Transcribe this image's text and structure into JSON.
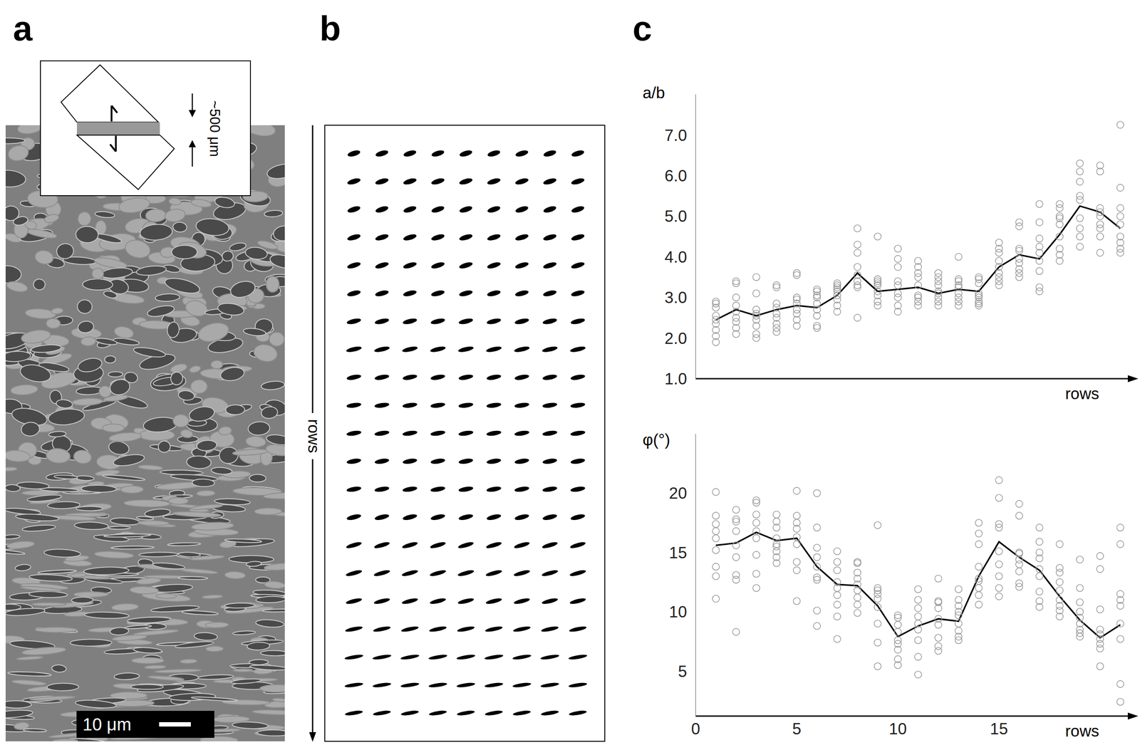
{
  "panel_labels": [
    "a",
    "b",
    "c"
  ],
  "panel_a": {
    "inset_label": "~500 μm",
    "scale_bar": "10 μm"
  },
  "panel_b": {
    "axis_label": "rows",
    "columns": 9
  },
  "chart_data": [
    {
      "type": "scatter",
      "y_label": "a/b",
      "x_label": "rows",
      "xlim": [
        0,
        21.5
      ],
      "ylim": [
        1,
        8
      ],
      "yticks": [
        {
          "value": 1,
          "label": "1.0"
        },
        {
          "value": 2,
          "label": "2.0"
        },
        {
          "value": 3,
          "label": "3.0"
        },
        {
          "value": 4,
          "label": "4.0"
        },
        {
          "value": 5,
          "label": "5.0"
        },
        {
          "value": 6,
          "label": "6.0"
        },
        {
          "value": 7,
          "label": "7.0"
        }
      ],
      "tick_labels": "y",
      "series": [
        {
          "type": "scatter",
          "marker": "circle",
          "color": "#999999",
          "x": [
            1,
            2,
            3,
            4,
            5,
            6,
            7,
            8,
            9,
            10,
            11,
            12,
            13,
            14,
            15,
            16,
            17,
            18,
            19,
            20,
            21
          ],
          "values": [
            [
              1.9,
              2.05,
              2.2,
              2.35,
              2.45,
              2.55,
              2.75,
              2.85,
              2.9
            ],
            [
              2.1,
              2.25,
              2.4,
              2.5,
              2.65,
              2.8,
              3.0,
              3.35,
              3.4
            ],
            [
              2.0,
              2.1,
              2.3,
              2.45,
              2.55,
              2.6,
              2.7,
              3.1,
              3.5
            ],
            [
              2.15,
              2.25,
              2.35,
              2.5,
              2.6,
              2.75,
              2.85,
              3.25,
              3.3
            ],
            [
              2.3,
              2.45,
              2.6,
              2.7,
              2.85,
              2.95,
              3.0,
              3.55,
              3.6
            ],
            [
              2.25,
              2.3,
              2.55,
              2.7,
              2.85,
              3.0,
              3.05,
              3.15,
              3.2
            ],
            [
              2.65,
              2.8,
              2.95,
              3.05,
              3.15,
              3.2,
              3.25,
              3.3,
              3.35
            ],
            [
              2.5,
              3.25,
              3.3,
              3.4,
              3.55,
              3.75,
              4.1,
              4.3,
              4.7
            ],
            [
              2.8,
              2.9,
              3.05,
              3.15,
              3.3,
              3.35,
              3.4,
              3.45,
              4.5
            ],
            [
              2.65,
              2.8,
              3.0,
              3.1,
              3.3,
              3.4,
              3.75,
              3.95,
              4.2
            ],
            [
              2.8,
              2.9,
              3.0,
              3.05,
              3.3,
              3.5,
              3.6,
              3.75,
              3.9
            ],
            [
              2.8,
              2.9,
              3.0,
              3.1,
              3.15,
              3.3,
              3.4,
              3.5,
              3.6
            ],
            [
              2.8,
              2.9,
              3.0,
              3.1,
              3.25,
              3.3,
              3.4,
              3.45,
              4.0
            ],
            [
              2.8,
              2.85,
              2.9,
              3.0,
              3.05,
              3.1,
              3.35,
              3.45,
              3.5
            ],
            [
              3.3,
              3.4,
              3.5,
              3.6,
              3.75,
              3.9,
              4.1,
              4.2,
              4.35
            ],
            [
              3.5,
              3.6,
              3.7,
              3.85,
              3.95,
              4.15,
              4.2,
              4.75,
              4.85
            ],
            [
              3.15,
              3.25,
              3.65,
              3.9,
              4.1,
              4.25,
              4.45,
              4.85,
              5.3
            ],
            [
              3.9,
              4.05,
              4.2,
              4.5,
              4.8,
              4.95,
              5.0,
              5.2,
              5.3
            ],
            [
              4.25,
              4.5,
              4.7,
              4.95,
              5.4,
              5.5,
              5.85,
              6.1,
              6.3
            ],
            [
              4.1,
              4.5,
              4.7,
              4.8,
              5.0,
              5.1,
              5.2,
              6.1,
              6.25
            ],
            [
              4.1,
              4.2,
              4.35,
              4.5,
              4.8,
              5.0,
              5.2,
              5.7,
              7.25
            ]
          ]
        },
        {
          "type": "line",
          "color": "#000000",
          "x": [
            1,
            2,
            3,
            4,
            5,
            6,
            7,
            8,
            9,
            10,
            11,
            12,
            13,
            14,
            15,
            16,
            17,
            18,
            19,
            20,
            21
          ],
          "values": [
            2.45,
            2.7,
            2.55,
            2.7,
            2.8,
            2.75,
            3.05,
            3.6,
            3.15,
            3.2,
            3.25,
            3.1,
            3.2,
            3.15,
            3.75,
            4.05,
            3.95,
            4.55,
            5.25,
            5.1,
            4.7
          ]
        }
      ]
    },
    {
      "type": "scatter",
      "y_label": "φ(°)",
      "x_label": "rows",
      "xlim": [
        0,
        21.5
      ],
      "ylim": [
        1.2,
        25
      ],
      "xticks": [
        0,
        5,
        10,
        15
      ],
      "yticks": [
        5,
        10,
        15,
        20
      ],
      "series": [
        {
          "type": "scatter",
          "marker": "circle",
          "color": "#999999",
          "x": [
            1,
            2,
            3,
            4,
            5,
            6,
            7,
            8,
            9,
            10,
            11,
            12,
            13,
            14,
            15,
            16,
            17,
            18,
            19,
            20,
            21
          ],
          "values": [
            [
              11.1,
              13.0,
              13.8,
              15.2,
              16.2,
              16.8,
              17.4,
              18.1,
              20.1
            ],
            [
              8.3,
              12.7,
              13.1,
              14.6,
              15.6,
              16.8,
              17.6,
              17.8,
              18.6
            ],
            [
              12.0,
              13.2,
              14.8,
              16.2,
              16.8,
              17.5,
              18.2,
              19.2,
              19.4
            ],
            [
              14.1,
              14.6,
              15.1,
              15.5,
              15.7,
              16.2,
              17.1,
              17.6,
              18.2
            ],
            [
              10.9,
              13.5,
              14.2,
              15.7,
              16.3,
              17.0,
              17.5,
              18.1,
              20.2
            ],
            [
              8.8,
              10.1,
              12.7,
              12.9,
              13.8,
              14.6,
              15.4,
              17.1,
              20.0
            ],
            [
              7.7,
              9.6,
              10.6,
              11.4,
              12.0,
              12.5,
              13.5,
              14.2,
              15.1
            ],
            [
              9.9,
              10.6,
              11.2,
              11.8,
              12.3,
              12.8,
              13.3,
              14.1,
              14.2
            ],
            [
              5.4,
              7.4,
              9.0,
              10.4,
              11.1,
              11.5,
              11.8,
              12.0,
              17.3
            ],
            [
              5.5,
              6.0,
              6.8,
              7.3,
              7.6,
              8.3,
              8.9,
              9.5,
              9.7
            ],
            [
              4.7,
              6.2,
              7.6,
              8.5,
              9.0,
              9.6,
              10.3,
              11.0,
              11.9
            ],
            [
              6.7,
              7.1,
              7.8,
              8.9,
              9.4,
              10.3,
              10.8,
              10.9,
              12.8
            ],
            [
              7.6,
              7.9,
              8.4,
              9.0,
              9.7,
              10.0,
              10.5,
              11.0,
              11.9
            ],
            [
              10.6,
              11.4,
              12.0,
              12.6,
              12.8,
              13.8,
              15.7,
              16.6,
              17.5
            ],
            [
              11.3,
              12.0,
              13.0,
              14.0,
              15.1,
              17.1,
              17.4,
              19.6,
              21.1
            ],
            [
              12.1,
              12.4,
              13.4,
              14.0,
              14.4,
              14.9,
              15.0,
              18.1,
              19.1
            ],
            [
              10.4,
              10.9,
              11.7,
              13.0,
              13.6,
              14.5,
              15.0,
              15.9,
              17.1
            ],
            [
              9.6,
              10.1,
              10.5,
              11.0,
              11.8,
              12.5,
              13.3,
              13.7,
              15.7
            ],
            [
              7.9,
              8.2,
              8.5,
              9.0,
              9.5,
              10.0,
              10.8,
              12.0,
              14.4
            ],
            [
              5.4,
              6.9,
              7.3,
              7.7,
              8.1,
              8.5,
              10.2,
              13.6,
              14.7
            ],
            [
              2.4,
              3.9,
              7.7,
              9.0,
              10.5,
              11.0,
              11.5,
              15.7,
              17.1
            ]
          ]
        },
        {
          "type": "line",
          "color": "#000000",
          "x": [
            1,
            2,
            3,
            4,
            5,
            6,
            7,
            8,
            9,
            10,
            11,
            12,
            13,
            14,
            15,
            16,
            17,
            18,
            19,
            20,
            21
          ],
          "values": [
            15.6,
            15.8,
            16.7,
            16.0,
            16.2,
            13.8,
            12.3,
            12.2,
            10.5,
            7.9,
            8.8,
            9.4,
            9.2,
            13.0,
            15.9,
            14.6,
            13.5,
            11.3,
            9.3,
            7.8,
            8.9
          ]
        }
      ]
    }
  ]
}
